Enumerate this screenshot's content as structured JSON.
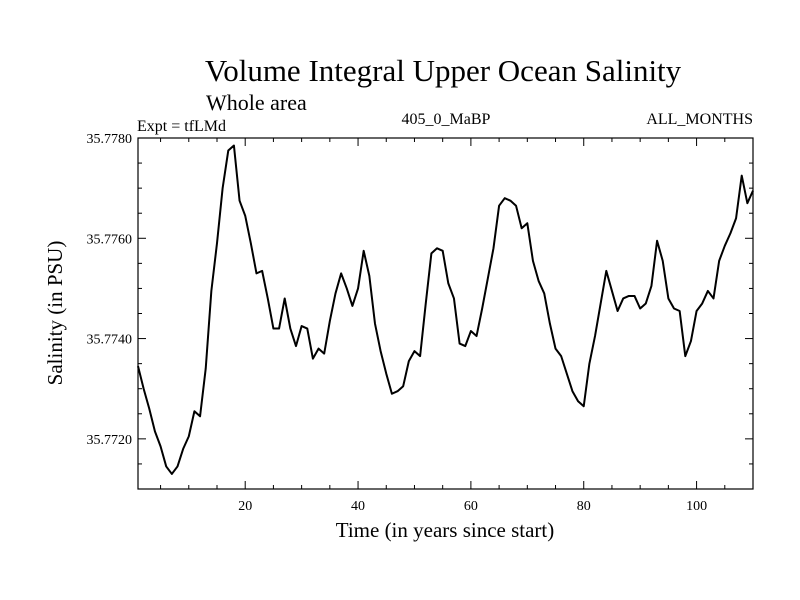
{
  "chart_data": {
    "type": "line",
    "title": "Volume Integral Upper Ocean Salinity",
    "subtitle": "Whole area",
    "left_label": "Expt = tfLMd",
    "center_label": "405_0_MaBP",
    "right_label": "ALL_MONTHS",
    "xlabel": "Time (in years since start)",
    "ylabel": "Salinity (in PSU)",
    "xlim": [
      1,
      110
    ],
    "ylim": [
      35.771,
      35.778
    ],
    "x_ticks": [
      20,
      40,
      60,
      80,
      100
    ],
    "x_tick_labels": [
      "20",
      "40",
      "60",
      "80",
      "100"
    ],
    "y_ticks": [
      35.772,
      35.774,
      35.776,
      35.778
    ],
    "y_tick_labels": [
      "35.7720",
      "35.7740",
      "35.7760",
      "35.7780"
    ],
    "color": "#000000",
    "series": [
      {
        "name": "salinity",
        "x": [
          1,
          2,
          3,
          4,
          5,
          6,
          7,
          8,
          9,
          10,
          11,
          12,
          13,
          14,
          15,
          16,
          17,
          18,
          19,
          20,
          21,
          22,
          23,
          24,
          25,
          26,
          27,
          28,
          29,
          30,
          31,
          32,
          33,
          34,
          35,
          36,
          37,
          38,
          39,
          40,
          41,
          42,
          43,
          44,
          45,
          46,
          47,
          48,
          49,
          50,
          51,
          52,
          53,
          54,
          55,
          56,
          57,
          58,
          59,
          60,
          61,
          62,
          63,
          64,
          65,
          66,
          67,
          68,
          69,
          70,
          71,
          72,
          73,
          74,
          75,
          76,
          77,
          78,
          79,
          80,
          81,
          82,
          83,
          84,
          85,
          86,
          87,
          88,
          89,
          90,
          91,
          92,
          93,
          94,
          95,
          96,
          97,
          98,
          99,
          100,
          101,
          102,
          103,
          104,
          105,
          106,
          107,
          108,
          109,
          110
        ],
        "values": [
          35.77345,
          35.773,
          35.7726,
          35.77215,
          35.77185,
          35.77145,
          35.7713,
          35.77145,
          35.7718,
          35.77205,
          35.77255,
          35.77245,
          35.7734,
          35.77495,
          35.7759,
          35.777,
          35.77775,
          35.77785,
          35.77675,
          35.77645,
          35.7759,
          35.7753,
          35.77535,
          35.7748,
          35.7742,
          35.7742,
          35.7748,
          35.7742,
          35.77385,
          35.77425,
          35.7742,
          35.7736,
          35.7738,
          35.7737,
          35.77435,
          35.7749,
          35.7753,
          35.775,
          35.77465,
          35.775,
          35.77575,
          35.77525,
          35.7743,
          35.77375,
          35.7733,
          35.7729,
          35.77295,
          35.77305,
          35.77355,
          35.77375,
          35.77365,
          35.7747,
          35.7757,
          35.7758,
          35.77575,
          35.7751,
          35.7748,
          35.7739,
          35.77385,
          35.77415,
          35.77405,
          35.7746,
          35.7752,
          35.7758,
          35.77665,
          35.7768,
          35.77675,
          35.77665,
          35.7762,
          35.7763,
          35.77555,
          35.77515,
          35.7749,
          35.7743,
          35.7738,
          35.77365,
          35.7733,
          35.77295,
          35.77275,
          35.77265,
          35.7735,
          35.77405,
          35.7747,
          35.77535,
          35.77495,
          35.77455,
          35.7748,
          35.77485,
          35.77485,
          35.7746,
          35.7747,
          35.77505,
          35.77595,
          35.77555,
          35.7748,
          35.7746,
          35.77455,
          35.77365,
          35.77395,
          35.77455,
          35.7747,
          35.77495,
          35.7748,
          35.77555,
          35.77585,
          35.7761,
          35.7764,
          35.77725,
          35.7767,
          35.77695
        ]
      }
    ]
  }
}
